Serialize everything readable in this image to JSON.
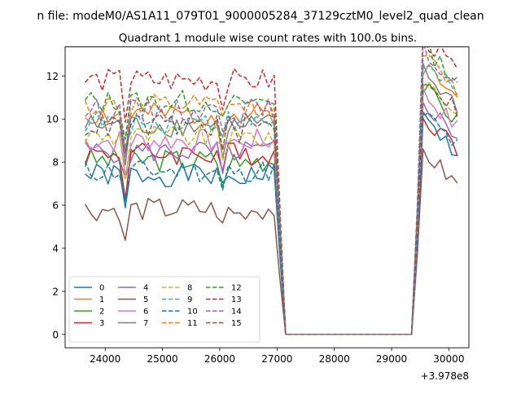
{
  "figure": {
    "suptitle": "n file: modeM0/AS1A11_079T01_9000005284_37129cztM0_level2_quad_clean",
    "title": "Quadrant 1 module wise count rates with 100.0s bins.",
    "x_offset_text": "+3.978e8"
  },
  "chart_data": {
    "type": "line",
    "title": "Quadrant 1 module wise count rates with 100.0s bins.",
    "xlabel": "",
    "ylabel": "",
    "x_offset": 397800000,
    "xlim": [
      23300,
      30350
    ],
    "ylim": [
      -0.62,
      13.35
    ],
    "x_ticks": [
      24000,
      25000,
      26000,
      27000,
      28000,
      29000,
      30000
    ],
    "x_tick_labels": [
      "24000",
      "25000",
      "26000",
      "27000",
      "28000",
      "29000",
      "30000"
    ],
    "y_ticks": [
      0,
      2,
      4,
      6,
      8,
      10,
      12
    ],
    "y_tick_labels": [
      "0",
      "2",
      "4",
      "6",
      "8",
      "10",
      "12"
    ],
    "grid": false,
    "legend_position": "lower-left",
    "legend_columns": 4,
    "series": [
      {
        "name": "0",
        "color": "#1f77b4",
        "dash": false,
        "base": 7.4,
        "late": 8.4,
        "seed": 1
      },
      {
        "name": "1",
        "color": "#ff7f0e",
        "dash": false,
        "base": 10.2,
        "late": 10.9,
        "seed": 2
      },
      {
        "name": "2",
        "color": "#2ca02c",
        "dash": false,
        "base": 8.1,
        "late": 9.9,
        "seed": 3
      },
      {
        "name": "3",
        "color": "#d62728",
        "dash": false,
        "base": 8.4,
        "late": 8.6,
        "seed": 4
      },
      {
        "name": "4",
        "color": "#9467bd",
        "dash": false,
        "base": 8.5,
        "late": 9.2,
        "seed": 5
      },
      {
        "name": "5",
        "color": "#8c564b",
        "dash": false,
        "base": 5.8,
        "late": 6.9,
        "seed": 6
      },
      {
        "name": "6",
        "color": "#e377c2",
        "dash": false,
        "base": 9.0,
        "late": 9.6,
        "seed": 7
      },
      {
        "name": "7",
        "color": "#7f7f7f",
        "dash": false,
        "base": 9.7,
        "late": 10.6,
        "seed": 8
      },
      {
        "name": "8",
        "color": "#bcbd22",
        "dash": true,
        "base": 9.2,
        "late": 10.3,
        "seed": 9
      },
      {
        "name": "9",
        "color": "#17becf",
        "dash": true,
        "base": 9.9,
        "late": 11.0,
        "seed": 10
      },
      {
        "name": "10",
        "color": "#1f77b4",
        "dash": true,
        "base": 7.6,
        "late": 8.7,
        "seed": 11
      },
      {
        "name": "11",
        "color": "#ff7f0e",
        "dash": true,
        "base": 10.6,
        "late": 11.3,
        "seed": 12
      },
      {
        "name": "12",
        "color": "#2ca02c",
        "dash": true,
        "base": 10.8,
        "late": 11.8,
        "seed": 13
      },
      {
        "name": "13",
        "color": "#d62728",
        "dash": true,
        "base": 11.8,
        "late": 12.2,
        "seed": 14
      },
      {
        "name": "14",
        "color": "#9467bd",
        "dash": true,
        "base": 10.4,
        "late": 11.6,
        "seed": 15
      },
      {
        "name": "15",
        "color": "#8c564b",
        "dash": true,
        "base": 9.7,
        "late": 10.4,
        "seed": 16
      }
    ]
  }
}
